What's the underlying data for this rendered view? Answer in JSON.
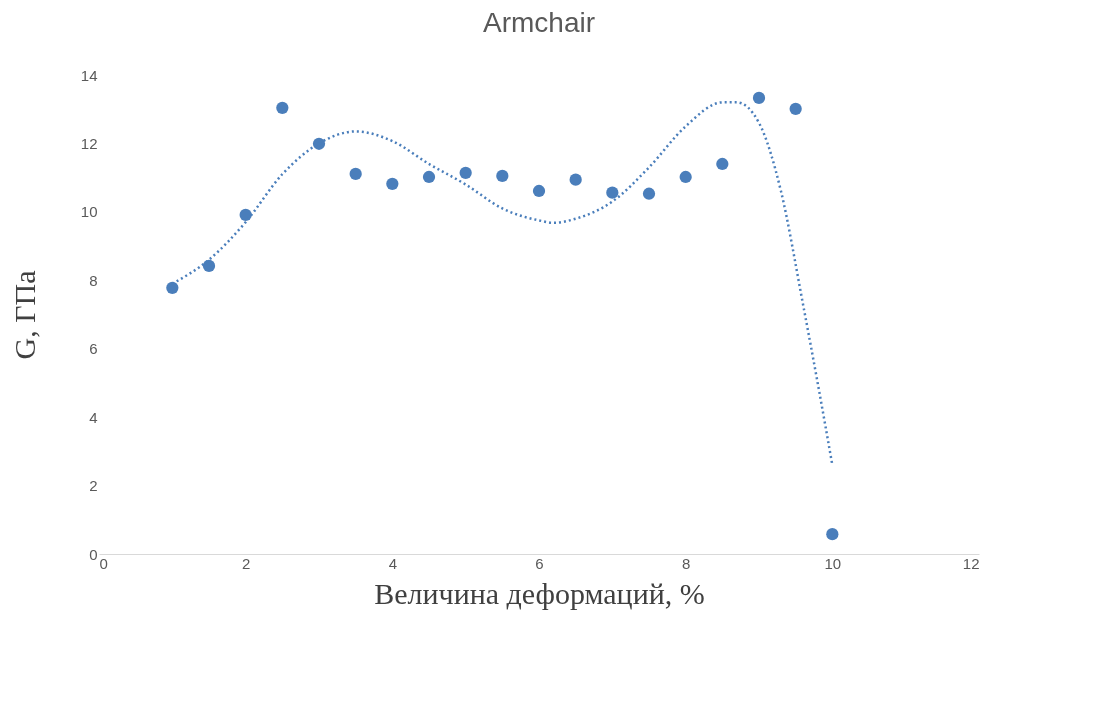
{
  "chart_data": {
    "type": "scatter",
    "title": "Armchair",
    "xlabel": "Величина деформаций, %",
    "ylabel": "G, ГПа",
    "xlim": [
      0,
      12
    ],
    "xticks": [
      0,
      2,
      4,
      6,
      8,
      10,
      12
    ],
    "ylim": [
      0,
      14
    ],
    "yticks": [
      0,
      2,
      4,
      6,
      8,
      10,
      12,
      14
    ],
    "grid": false,
    "marker": "circle",
    "series": [
      {
        "color": "#4a7ebb",
        "x": [
          1,
          1.5,
          2,
          2.5,
          3,
          3.5,
          4,
          4.5,
          5,
          5.5,
          6,
          6.5,
          7,
          7.5,
          8,
          8.5,
          9,
          9.5,
          10
        ],
        "values": [
          7.78,
          8.42,
          9.91,
          13.04,
          11.99,
          11.11,
          10.82,
          11.02,
          11.14,
          11.05,
          10.61,
          10.94,
          10.56,
          10.53,
          11.02,
          11.4,
          13.33,
          13.01,
          0.58
        ]
      },
      {
        "type": "line",
        "marker": "none",
        "line_style": "dotted",
        "color": "#4a7ebb",
        "x": [
          1,
          1.5,
          2,
          2.5,
          3,
          3.5,
          4,
          4.5,
          5,
          5.5,
          6,
          6.2,
          6.5,
          7,
          7.5,
          8,
          8.5,
          8.7,
          9,
          9.3,
          9.6,
          9.8,
          10
        ],
        "values": [
          7.9,
          8.6,
          9.7,
          11.1,
          12.0,
          12.35,
          12.07,
          11.4,
          10.8,
          10.1,
          9.75,
          9.68,
          9.8,
          10.3,
          11.3,
          12.5,
          13.2,
          13.2,
          12.6,
          10.6,
          7.3,
          5.0,
          2.6
        ]
      }
    ]
  }
}
